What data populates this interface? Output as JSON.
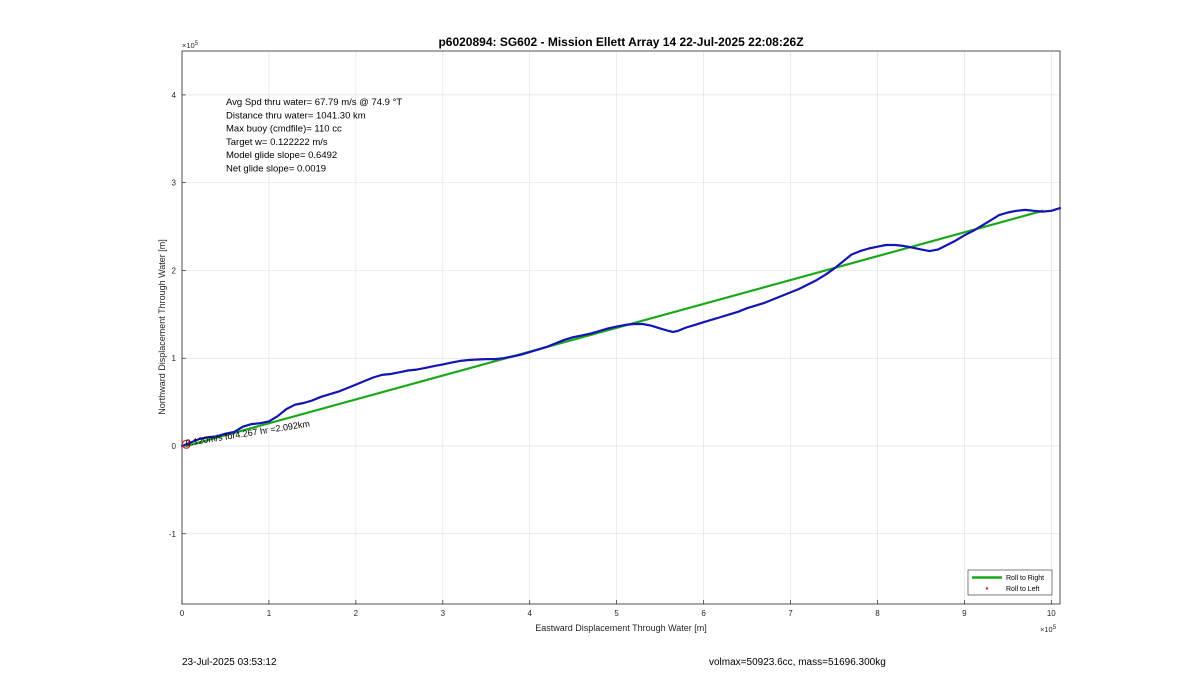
{
  "chart_data": {
    "type": "line",
    "title": "p6020894: SG602 - Mission Ellett Array 14 22-Jul-2025 22:08:26Z",
    "xlabel": "Eastward Displacement Through Water [m]",
    "ylabel": "Northward Displacement Through Water [m]",
    "x_exponent_label": "× 10^5",
    "y_exponent_label": "× 10^5",
    "xlim": [
      0,
      10.1
    ],
    "ylim": [
      -1.8,
      4.5
    ],
    "xticks": [
      0,
      1,
      2,
      3,
      4,
      5,
      6,
      7,
      8,
      9,
      10
    ],
    "yticks": [
      -1,
      0,
      1,
      2,
      3,
      4
    ],
    "grid": true,
    "legend_placement": "bottom-right",
    "legend": [
      {
        "label": "Roll to Right",
        "color": "#1aa81a",
        "style": "line"
      },
      {
        "label": "Roll to Left",
        "color": "#cc2a2a",
        "style": "dot"
      }
    ],
    "info_lines": [
      "Avg Spd thru water= 67.79 m/s @  74.9 °T",
      "Distance thru water= 1041.30 km",
      "Max buoy (cmdfile)= 110 cc",
      "Target w= 0.122222 m/s",
      "Model glide slope= 0.6492",
      "Net glide slope= 0.0019"
    ],
    "track_annotation": "0.120m/s for4.267 hr =2.092km",
    "series": [
      {
        "color": "#1aa81a",
        "x": [
          0.05,
          9.9
        ],
        "y": [
          0.0,
          2.68
        ]
      },
      {
        "color": "#1414b4",
        "x": [
          0.0,
          0.1,
          0.2,
          0.3,
          0.4,
          0.5,
          0.6,
          0.7,
          0.8,
          0.9,
          1.0,
          1.1,
          1.2,
          1.3,
          1.4,
          1.5,
          1.6,
          1.7,
          1.8,
          1.9,
          2.0,
          2.1,
          2.2,
          2.3,
          2.4,
          2.5,
          2.6,
          2.7,
          2.8,
          2.9,
          3.0,
          3.1,
          3.2,
          3.3,
          3.4,
          3.5,
          3.6,
          3.7,
          3.8,
          3.9,
          4.0,
          4.1,
          4.2,
          4.3,
          4.4,
          4.5,
          4.6,
          4.7,
          4.8,
          4.9,
          5.0,
          5.1,
          5.2,
          5.3,
          5.4,
          5.5,
          5.6,
          5.65,
          5.7,
          5.8,
          5.9,
          6.0,
          6.1,
          6.2,
          6.3,
          6.4,
          6.5,
          6.6,
          6.7,
          6.8,
          6.9,
          7.0,
          7.1,
          7.2,
          7.3,
          7.4,
          7.5,
          7.6,
          7.7,
          7.8,
          7.9,
          8.0,
          8.1,
          8.2,
          8.3,
          8.4,
          8.5,
          8.6,
          8.7,
          8.8,
          8.9,
          9.0,
          9.1,
          9.2,
          9.3,
          9.4,
          9.5,
          9.6,
          9.7,
          9.8,
          9.9,
          10.0,
          10.1
        ],
        "y": [
          0.0,
          0.04,
          0.08,
          0.1,
          0.11,
          0.14,
          0.16,
          0.22,
          0.25,
          0.26,
          0.28,
          0.34,
          0.42,
          0.47,
          0.49,
          0.52,
          0.56,
          0.59,
          0.62,
          0.66,
          0.7,
          0.74,
          0.78,
          0.81,
          0.82,
          0.84,
          0.86,
          0.87,
          0.89,
          0.91,
          0.93,
          0.95,
          0.97,
          0.98,
          0.985,
          0.99,
          0.99,
          1.0,
          1.02,
          1.04,
          1.07,
          1.1,
          1.13,
          1.17,
          1.21,
          1.24,
          1.26,
          1.28,
          1.31,
          1.34,
          1.36,
          1.38,
          1.39,
          1.39,
          1.37,
          1.34,
          1.31,
          1.3,
          1.31,
          1.35,
          1.38,
          1.41,
          1.44,
          1.47,
          1.5,
          1.53,
          1.57,
          1.6,
          1.63,
          1.67,
          1.71,
          1.75,
          1.79,
          1.84,
          1.89,
          1.95,
          2.02,
          2.1,
          2.18,
          2.22,
          2.25,
          2.27,
          2.29,
          2.29,
          2.28,
          2.26,
          2.24,
          2.22,
          2.24,
          2.29,
          2.34,
          2.4,
          2.45,
          2.51,
          2.57,
          2.63,
          2.66,
          2.68,
          2.69,
          2.68,
          2.67,
          2.68,
          2.71
        ]
      }
    ],
    "start_marker": {
      "x": 0.05,
      "y": 0.02,
      "color": "#cc2a2a"
    }
  },
  "footer": {
    "timestamp": "23-Jul-2025 03:53:12",
    "volmax": "volmax=50923.6cc, mass=51696.300kg"
  }
}
